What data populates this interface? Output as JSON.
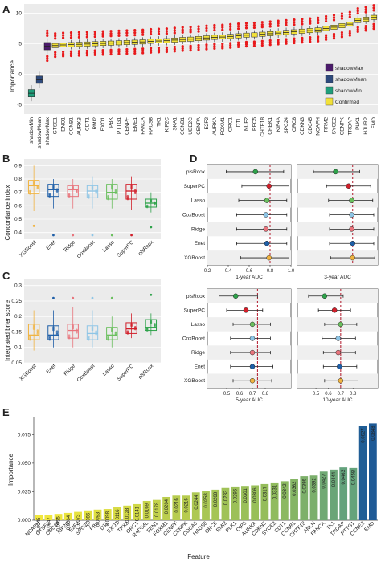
{
  "panels": {
    "A": {
      "letter": "A",
      "ylabel": "Importance",
      "yticks": [
        -5,
        0,
        5,
        10
      ],
      "ylim": [
        -6.5,
        11.5
      ],
      "legend": [
        {
          "label": "shadowMax",
          "color": "#4b1a6b"
        },
        {
          "label": "shadowMean",
          "color": "#2e4a7d"
        },
        {
          "label": "shadowMin",
          "color": "#1f9e7a"
        },
        {
          "label": "Confirmed",
          "color": "#f2e13a"
        }
      ],
      "outlier_color": "#e8191b"
    },
    "B": {
      "letter": "B",
      "ylabel": "Concordance index",
      "yticks": [
        0.4,
        0.5,
        0.6,
        0.7,
        0.8,
        0.9
      ],
      "ylim": [
        0.35,
        0.95
      ]
    },
    "C": {
      "letter": "C",
      "ylabel": "Integrated brier score",
      "yticks": [
        0.05,
        0.1,
        0.15,
        0.2,
        0.25,
        0.3
      ],
      "ylim": [
        0.05,
        0.32
      ]
    },
    "D": {
      "letter": "D",
      "models": [
        "plsRcox",
        "SuperPC",
        "Lasso",
        "CoxBoost",
        "Ridge",
        "Enet",
        "XGBoost"
      ],
      "subplots": [
        {
          "label": "1-year AUC",
          "ticks": [
            "0.2",
            "0.4",
            "0.6",
            "0.8",
            "1.0"
          ]
        },
        {
          "label": "3-year AUC",
          "ticks": [],
          "tick_values": []
        },
        {
          "label": "5-year AUC",
          "ticks": [
            "0.5",
            "0.6",
            "0.7",
            "0.8"
          ]
        },
        {
          "label": "10-year AUC",
          "ticks": [
            "0.5",
            "0.6",
            "0.7",
            "0.8"
          ]
        }
      ]
    },
    "E": {
      "letter": "E",
      "ylabel": "Importance",
      "xlabel": "Feature",
      "yticks": [
        "0.000",
        "0.025",
        "0.050",
        "0.075"
      ],
      "ylim": [
        0,
        0.09
      ]
    }
  },
  "model_colors": {
    "XGBoost": "#f0b340",
    "Enet": "#1f5fa8",
    "Ridge": "#e8747c",
    "CoxBoost": "#8ec5e6",
    "Lasso": "#6abf5e",
    "SuperPC": "#d11f2a",
    "plsRcox": "#2ea24a"
  },
  "chart_data": [
    {
      "type": "box",
      "panel": "A",
      "title": "",
      "ylabel": "Importance",
      "ylim": [
        -6.5,
        11.5
      ],
      "categories": [
        "shadowMin",
        "shadowMean",
        "shadowMax",
        "GTSE1",
        "ENO1",
        "CCNB1",
        "AURKB",
        "CDT1",
        "RMI2",
        "EXO1",
        "PBK",
        "PTTG1",
        "CENPF",
        "EME1",
        "FANCA",
        "HAUS8",
        "TK1",
        "KIF2C",
        "SKA1",
        "CCNB1",
        "UBE2C",
        "CENPA",
        "E2F2",
        "AURKA",
        "FOXM1",
        "ORC1",
        "DTL",
        "NUF2",
        "RFC5",
        "CHTF18",
        "CHEK1",
        "KIF4A",
        "SPC24",
        "ORC6",
        "CDKN3",
        "CDC45",
        "NCAPH",
        "RRM2",
        "SYCE2",
        "CENPK",
        "TROAP",
        "PLK1",
        "HJURP",
        "EMD"
      ],
      "medians": [
        -3.1,
        -0.9,
        4.6,
        4.7,
        4.8,
        4.85,
        4.9,
        4.95,
        5.0,
        5.05,
        5.1,
        5.15,
        5.2,
        5.25,
        5.3,
        5.4,
        5.45,
        5.5,
        5.6,
        5.7,
        5.75,
        5.85,
        5.95,
        6.05,
        6.1,
        6.2,
        6.3,
        6.4,
        6.45,
        6.55,
        6.65,
        6.75,
        6.85,
        6.95,
        7.05,
        7.15,
        7.25,
        7.5,
        7.7,
        7.95,
        8.2,
        8.8,
        9.0,
        9.3
      ]
    },
    {
      "type": "box",
      "panel": "B",
      "ylabel": "Concordance index",
      "ylim": [
        0.35,
        0.95
      ],
      "categories": [
        "XGBoost",
        "Enet",
        "Ridge",
        "CoxBoost",
        "Lasso",
        "SuperPC",
        "plsRcox"
      ],
      "q1": [
        0.69,
        0.67,
        0.67,
        0.66,
        0.65,
        0.65,
        0.59
      ],
      "median": [
        0.75,
        0.72,
        0.72,
        0.71,
        0.7,
        0.71,
        0.62
      ],
      "q3": [
        0.79,
        0.76,
        0.75,
        0.75,
        0.76,
        0.76,
        0.65
      ],
      "lower": [
        0.56,
        0.58,
        0.58,
        0.58,
        0.58,
        0.57,
        0.55
      ],
      "upper": [
        0.9,
        0.8,
        0.8,
        0.82,
        0.8,
        0.82,
        0.7
      ],
      "outliers": [
        [
          0.45
        ],
        [
          0.38
        ],
        [
          0.38
        ],
        [
          0.38
        ],
        [
          0.38
        ],
        [
          0.38
        ],
        [
          0.44
        ]
      ]
    },
    {
      "type": "box",
      "panel": "C",
      "ylabel": "Integrated brier score",
      "ylim": [
        0.05,
        0.32
      ],
      "categories": [
        "XGBoost",
        "Enet",
        "Ridge",
        "CoxBoost",
        "Lasso",
        "SuperPC",
        "plsRcox"
      ],
      "q1": [
        0.125,
        0.125,
        0.13,
        0.125,
        0.125,
        0.145,
        0.155
      ],
      "median": [
        0.14,
        0.14,
        0.155,
        0.145,
        0.14,
        0.16,
        0.165
      ],
      "q3": [
        0.175,
        0.17,
        0.175,
        0.17,
        0.165,
        0.18,
        0.19
      ],
      "lower": [
        0.09,
        0.1,
        0.1,
        0.1,
        0.1,
        0.13,
        0.14
      ],
      "upper": [
        0.22,
        0.22,
        0.23,
        0.22,
        0.2,
        0.21,
        0.21
      ],
      "outliers": [
        [],
        [
          0.26
        ],
        [
          0.26
        ],
        [
          0.26
        ],
        [
          0.26
        ],
        [],
        [
          0.27
        ]
      ]
    },
    {
      "type": "forest",
      "panel": "D",
      "models": [
        "plsRcox",
        "SuperPC",
        "Lasso",
        "CoxBoost",
        "Ridge",
        "Enet",
        "XGBoost"
      ],
      "subplots": [
        {
          "label": "1-year AUC",
          "xlim": [
            0.2,
            1.0
          ],
          "ref": 0.8,
          "point": [
            0.66,
            0.79,
            0.77,
            0.76,
            0.76,
            0.77,
            0.79
          ],
          "lo": [
            0.38,
            0.53,
            0.5,
            0.48,
            0.48,
            0.48,
            0.52
          ],
          "hi": [
            0.93,
            0.98,
            0.96,
            0.96,
            0.96,
            0.96,
            0.98
          ]
        },
        {
          "label": "3-year AUC",
          "xlim": [
            0.2,
            1.0
          ],
          "ref": 0.75,
          "point": [
            0.58,
            0.71,
            0.74,
            0.74,
            0.74,
            0.75,
            0.75
          ],
          "lo": [
            0.36,
            0.49,
            0.51,
            0.52,
            0.52,
            0.52,
            0.53
          ],
          "hi": [
            0.82,
            0.93,
            0.95,
            0.96,
            0.96,
            0.96,
            0.97
          ]
        },
        {
          "label": "5-year AUC",
          "xlim": [
            0.35,
            1.0
          ],
          "ref": 0.74,
          "point": [
            0.57,
            0.65,
            0.7,
            0.7,
            0.7,
            0.7,
            0.7
          ],
          "lo": [
            0.44,
            0.5,
            0.55,
            0.53,
            0.53,
            0.53,
            0.55
          ],
          "hi": [
            0.74,
            0.78,
            0.84,
            0.84,
            0.84,
            0.86,
            0.85
          ]
        },
        {
          "label": "10-year AUC",
          "xlim": [
            0.35,
            1.0
          ],
          "ref": 0.7,
          "point": [
            0.57,
            0.65,
            0.7,
            0.68,
            0.68,
            0.69,
            0.7
          ],
          "lo": [
            0.44,
            0.52,
            0.57,
            0.55,
            0.56,
            0.56,
            0.57
          ],
          "hi": [
            0.72,
            0.78,
            0.83,
            0.82,
            0.82,
            0.83,
            0.84
          ]
        }
      ]
    },
    {
      "type": "bar",
      "panel": "E",
      "ylabel": "Importance",
      "xlabel": "Feature",
      "ylim": [
        0,
        0.09
      ],
      "categories": [
        "NCAPH",
        "GTSE1",
        "CDC20",
        "KIF2C",
        "E2F2",
        "SPC25",
        "PBK",
        "DTL",
        "EXO1",
        "TPX2",
        "ORC1",
        "RAD54L",
        "FEN1",
        "FOXM1",
        "CENPF",
        "CENPK",
        "CDCA5",
        "HAUS8",
        "ORC6",
        "RMI2",
        "PLK1",
        "OIP5",
        "AURKA",
        "CDKN3",
        "SYCE2",
        "CDT1",
        "CCNB1",
        "CHTF18",
        "ANLN",
        "FANCA",
        "TK1",
        "TROAP",
        "PTTG1",
        "CCNE2",
        "EMD"
      ],
      "values": [
        0.0045,
        0.0047,
        0.0055,
        0.0064,
        0.0073,
        0.0086,
        0.0093,
        0.0098,
        0.0116,
        0.0128,
        0.0141,
        0.0169,
        0.0178,
        0.0204,
        0.0216,
        0.0216,
        0.0244,
        0.0258,
        0.0268,
        0.0283,
        0.0296,
        0.0301,
        0.0306,
        0.0317,
        0.0331,
        0.0342,
        0.0362,
        0.0386,
        0.0392,
        0.0427,
        0.0444,
        0.0463,
        0.0458,
        0.0827,
        0.0848
      ],
      "value_labels": [
        "0.0045",
        "0.0047",
        "0.0055",
        "0.0064",
        "0.0073",
        "0.0086",
        "0.0093",
        "0.0098",
        "0.0116",
        "0.0128",
        "0.0141",
        "0.0169",
        "0.0178",
        "0.0204",
        "0.0216",
        "0.0216",
        "0.0244",
        "0.0258",
        "0.0268",
        "0.0283",
        "0.0296",
        "0.0301",
        "0.0306",
        "0.0317",
        "0.0331",
        "0.0342",
        "0.0362",
        "0.0386",
        "0.0392",
        "0.0427",
        "0.0444",
        "0.0463",
        "0.0458",
        "0.0827",
        "0.0848"
      ]
    }
  ]
}
